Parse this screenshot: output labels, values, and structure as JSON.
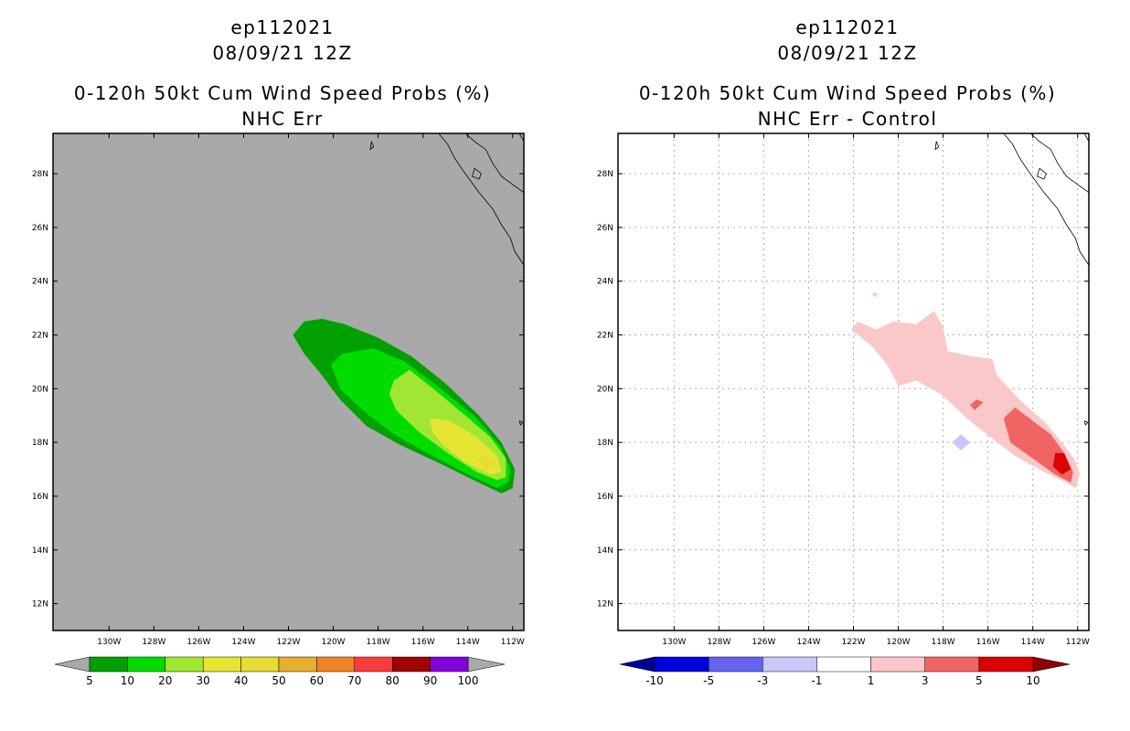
{
  "chart_data": [
    {
      "type": "heatmap",
      "storm_id": "ep112021",
      "date_time": "08/09/21 12Z",
      "title": "0-120h 50kt Cum Wind Speed Probs (%)",
      "subtitle": "NHC Err",
      "xlabel": "",
      "ylabel": "",
      "xlim": [
        -132.5,
        -111.5
      ],
      "ylim": [
        11,
        29.5
      ],
      "x_ticks": [
        -130,
        -128,
        -126,
        -124,
        -122,
        -120,
        -118,
        -116,
        -114,
        -112
      ],
      "x_tick_labels": [
        "130W",
        "128W",
        "126W",
        "124W",
        "122W",
        "120W",
        "118W",
        "116W",
        "114W",
        "112W"
      ],
      "y_ticks": [
        12,
        14,
        16,
        18,
        20,
        22,
        24,
        26,
        28
      ],
      "y_tick_labels": [
        "12N",
        "14N",
        "16N",
        "18N",
        "20N",
        "22N",
        "24N",
        "26N",
        "28N"
      ],
      "grid": false,
      "background_color": "#a9a9a9",
      "colorbar": {
        "levels": [
          "5",
          "10",
          "20",
          "30",
          "40",
          "50",
          "60",
          "70",
          "80",
          "90",
          "100"
        ],
        "colors": [
          "#00a000",
          "#00dc00",
          "#a0e632",
          "#e6e632",
          "#e6dc32",
          "#e6af2d",
          "#f08228",
          "#fa3c3c",
          "#a00000",
          "#8200dc"
        ],
        "extend_colors": [
          "#a9a9a9",
          "#a9a9a9"
        ]
      },
      "regions": [
        {
          "level": "5-10",
          "color": "#00a000",
          "points": [
            [
              -121.8,
              22.0
            ],
            [
              -121.3,
              22.5
            ],
            [
              -120.5,
              22.6
            ],
            [
              -119.5,
              22.4
            ],
            [
              -118.0,
              21.9
            ],
            [
              -116.5,
              21.2
            ],
            [
              -115.0,
              20.2
            ],
            [
              -113.5,
              19.0
            ],
            [
              -112.5,
              18.0
            ],
            [
              -111.9,
              17.0
            ],
            [
              -112.0,
              16.3
            ],
            [
              -112.5,
              16.1
            ],
            [
              -113.5,
              16.5
            ],
            [
              -115.2,
              17.2
            ],
            [
              -117.0,
              17.9
            ],
            [
              -118.5,
              18.6
            ],
            [
              -119.7,
              19.6
            ],
            [
              -120.6,
              20.6
            ],
            [
              -121.3,
              21.3
            ]
          ]
        },
        {
          "level": "10-20",
          "color": "#00dc00",
          "points": [
            [
              -120.1,
              20.9
            ],
            [
              -119.6,
              21.3
            ],
            [
              -118.2,
              21.5
            ],
            [
              -116.8,
              21.0
            ],
            [
              -115.2,
              20.0
            ],
            [
              -113.6,
              18.9
            ],
            [
              -112.5,
              17.8
            ],
            [
              -112.1,
              17.0
            ],
            [
              -112.2,
              16.5
            ],
            [
              -112.7,
              16.3
            ],
            [
              -114.0,
              16.8
            ],
            [
              -115.8,
              17.6
            ],
            [
              -117.3,
              18.3
            ],
            [
              -118.7,
              19.2
            ],
            [
              -119.7,
              20.0
            ]
          ]
        },
        {
          "level": "20-30",
          "color": "#a0e632",
          "points": [
            [
              -117.3,
              20.3
            ],
            [
              -116.6,
              20.7
            ],
            [
              -115.4,
              19.9
            ],
            [
              -114.1,
              19.0
            ],
            [
              -113.0,
              18.2
            ],
            [
              -112.3,
              17.4
            ],
            [
              -112.3,
              16.7
            ],
            [
              -112.7,
              16.6
            ],
            [
              -113.6,
              16.9
            ],
            [
              -114.9,
              17.6
            ],
            [
              -116.2,
              18.4
            ],
            [
              -117.2,
              19.2
            ],
            [
              -117.5,
              19.8
            ]
          ]
        },
        {
          "level": "30-40",
          "color": "#e6e632",
          "points": [
            [
              -115.7,
              18.9
            ],
            [
              -114.8,
              18.8
            ],
            [
              -113.6,
              18.2
            ],
            [
              -112.7,
              17.5
            ],
            [
              -112.5,
              16.9
            ],
            [
              -113.0,
              16.8
            ],
            [
              -114.2,
              17.3
            ],
            [
              -115.1,
              17.9
            ],
            [
              -115.6,
              18.4
            ]
          ]
        },
        {
          "level": "40-50",
          "color": "#e6dc32",
          "points": [
            [
              -113.3,
              17.6
            ],
            [
              -112.7,
              17.2
            ],
            [
              -113.1,
              17.0
            ],
            [
              -113.6,
              17.3
            ]
          ]
        }
      ]
    },
    {
      "type": "heatmap",
      "storm_id": "ep112021",
      "date_time": "08/09/21 12Z",
      "title": "0-120h 50kt Cum Wind Speed Probs (%)",
      "subtitle": "NHC Err - Control",
      "xlabel": "",
      "ylabel": "",
      "xlim": [
        -132.5,
        -111.5
      ],
      "ylim": [
        11,
        29.5
      ],
      "x_ticks": [
        -130,
        -128,
        -126,
        -124,
        -122,
        -120,
        -118,
        -116,
        -114,
        -112
      ],
      "x_tick_labels": [
        "130W",
        "128W",
        "126W",
        "124W",
        "122W",
        "120W",
        "118W",
        "116W",
        "114W",
        "112W"
      ],
      "y_ticks": [
        12,
        14,
        16,
        18,
        20,
        22,
        24,
        26,
        28
      ],
      "y_tick_labels": [
        "12N",
        "14N",
        "16N",
        "18N",
        "20N",
        "22N",
        "24N",
        "26N",
        "28N"
      ],
      "grid": true,
      "background_color": "#ffffff",
      "colorbar": {
        "levels": [
          "-10",
          "-5",
          "-3",
          "-1",
          "1",
          "3",
          "5",
          "10"
        ],
        "colors": [
          "#0000dc",
          "#6464f0",
          "#c8c8fa",
          "#ffffff",
          "#fac8c8",
          "#f06464",
          "#dc0000"
        ],
        "extend_colors": [
          "#000096",
          "#8c0000"
        ]
      },
      "regions": [
        {
          "level": "1-3",
          "color": "#fac8c8",
          "points": [
            [
              -122.1,
              22.2
            ],
            [
              -121.8,
              22.5
            ],
            [
              -121.0,
              22.2
            ],
            [
              -120.2,
              22.5
            ],
            [
              -119.2,
              22.4
            ],
            [
              -118.4,
              22.9
            ],
            [
              -118.0,
              22.3
            ],
            [
              -117.8,
              21.4
            ],
            [
              -116.7,
              21.2
            ],
            [
              -115.8,
              21.1
            ],
            [
              -115.6,
              20.5
            ],
            [
              -114.6,
              19.6
            ],
            [
              -113.4,
              18.7
            ],
            [
              -112.6,
              17.9
            ],
            [
              -112.1,
              17.3
            ],
            [
              -111.9,
              16.8
            ],
            [
              -112.1,
              16.3
            ],
            [
              -112.5,
              16.5
            ],
            [
              -113.5,
              16.9
            ],
            [
              -114.8,
              17.5
            ],
            [
              -115.9,
              18.2
            ],
            [
              -116.8,
              18.8
            ],
            [
              -118.1,
              19.8
            ],
            [
              -119.2,
              20.3
            ],
            [
              -120.0,
              20.1
            ],
            [
              -120.3,
              20.6
            ],
            [
              -120.6,
              21.0
            ],
            [
              -121.2,
              21.6
            ]
          ]
        },
        {
          "level": "1-3",
          "color": "#fac8c8",
          "points": [
            [
              -121.2,
              23.5
            ],
            [
              -121.0,
              23.6
            ],
            [
              -120.9,
              23.4
            ]
          ]
        },
        {
          "level": "3-5",
          "color": "#f06464",
          "points": [
            [
              -114.8,
              19.3
            ],
            [
              -114.0,
              18.8
            ],
            [
              -113.2,
              18.3
            ],
            [
              -112.6,
              17.6
            ],
            [
              -112.2,
              16.9
            ],
            [
              -112.3,
              16.5
            ],
            [
              -113.0,
              16.8
            ],
            [
              -114.0,
              17.4
            ],
            [
              -115.0,
              18.0
            ],
            [
              -115.3,
              18.9
            ]
          ]
        },
        {
          "level": "3-5",
          "color": "#f06464",
          "points": [
            [
              -116.5,
              19.6
            ],
            [
              -116.2,
              19.5
            ],
            [
              -116.6,
              19.2
            ],
            [
              -116.8,
              19.4
            ]
          ]
        },
        {
          "level": "5-10",
          "color": "#dc0000",
          "points": [
            [
              -113.0,
              17.6
            ],
            [
              -112.6,
              17.6
            ],
            [
              -112.3,
              17.0
            ],
            [
              -112.7,
              16.8
            ],
            [
              -113.1,
              17.1
            ]
          ]
        },
        {
          "level": "-3--1",
          "color": "#c8c8fa",
          "points": [
            [
              -117.6,
              18.0
            ],
            [
              -117.2,
              18.3
            ],
            [
              -116.8,
              18.0
            ],
            [
              -117.2,
              17.7
            ]
          ]
        }
      ]
    }
  ],
  "colors": {
    "land_outline": "#000000",
    "grid_line": "#b0b0b0"
  }
}
